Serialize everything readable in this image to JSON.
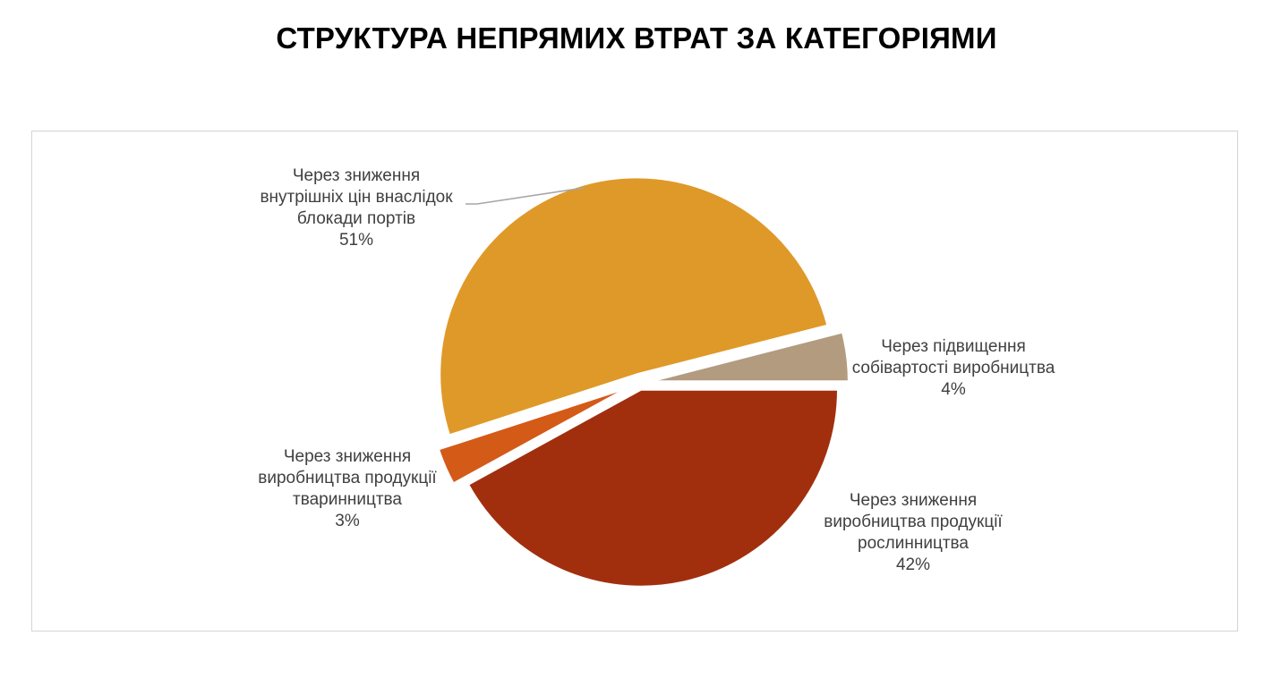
{
  "chart_data": {
    "type": "pie",
    "title": "СТРУКТУРА НЕПРЯМИХ ВТРАТ ЗА КАТЕГОРІЯМИ",
    "slices": [
      {
        "label_lines": [
          "Через підвищення",
          "собівартості виробництва"
        ],
        "percent_label": "4%",
        "value": 4,
        "color": "#b39b7f"
      },
      {
        "label_lines": [
          "Через зниження",
          "виробництва продукції",
          "рослинництва"
        ],
        "percent_label": "42%",
        "value": 42,
        "color": "#a12f0e"
      },
      {
        "label_lines": [
          "Через зниження",
          "виробництва продукції",
          "тваринництва"
        ],
        "percent_label": "3%",
        "value": 3,
        "color": "#d45a18"
      },
      {
        "label_lines": [
          "Через зниження",
          "внутрішніх цін внаслідок",
          "блокади портів"
        ],
        "percent_label": "51%",
        "value": 51,
        "color": "#df9928"
      }
    ]
  }
}
